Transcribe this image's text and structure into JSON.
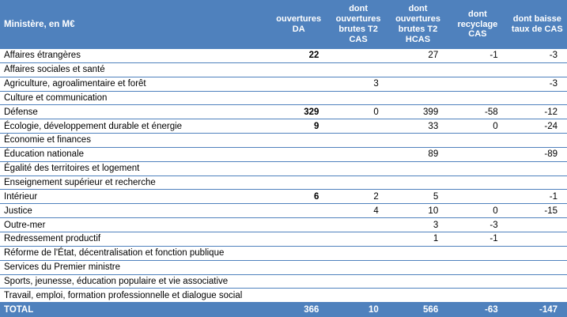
{
  "table": {
    "header": {
      "col0": "Ministère, en M€",
      "cols": [
        "ouvertures\nDA",
        "dont\nouvertures\nbrutes T2\nCAS",
        "dont\nouvertures\nbrutes T2\nHCAS",
        "dont\nrecyclage\nCAS",
        "dont baisse\ntaux de CAS"
      ]
    },
    "rows": [
      {
        "label": "Affaires étrangères",
        "values": [
          "22",
          "",
          "27",
          "-1",
          "-3"
        ]
      },
      {
        "label": "Affaires sociales et santé",
        "values": [
          "",
          "",
          "",
          "",
          ""
        ]
      },
      {
        "label": "Agriculture, agroalimentaire et forêt",
        "values": [
          "",
          "3",
          "",
          "",
          "-3"
        ]
      },
      {
        "label": "Culture et communication",
        "values": [
          "",
          "",
          "",
          "",
          ""
        ]
      },
      {
        "label": "Défense",
        "values": [
          "329",
          "0",
          "399",
          "-58",
          "-12"
        ]
      },
      {
        "label": "Écologie, développement durable et énergie",
        "values": [
          "9",
          "",
          "33",
          "0",
          "-24"
        ]
      },
      {
        "label": "Économie et finances",
        "values": [
          "",
          "",
          "",
          "",
          ""
        ]
      },
      {
        "label": "Éducation nationale",
        "values": [
          "",
          "",
          "89",
          "",
          "-89"
        ]
      },
      {
        "label": "Égalité des territoires et logement",
        "values": [
          "",
          "",
          "",
          "",
          ""
        ]
      },
      {
        "label": "Enseignement supérieur et recherche",
        "values": [
          "",
          "",
          "",
          "",
          ""
        ]
      },
      {
        "label": "Intérieur",
        "values": [
          "6",
          "2",
          "5",
          "",
          "-1"
        ]
      },
      {
        "label": "Justice",
        "values": [
          "",
          "4",
          "10",
          "0",
          "-15"
        ]
      },
      {
        "label": "Outre-mer",
        "values": [
          "",
          "",
          "3",
          "-3",
          ""
        ]
      },
      {
        "label": "Redressement productif",
        "values": [
          "",
          "",
          "1",
          "-1",
          ""
        ]
      },
      {
        "label": "Réforme de l'État, décentralisation et fonction publique",
        "values": [
          "",
          "",
          "",
          "",
          ""
        ]
      },
      {
        "label": "Services du Premier ministre",
        "values": [
          "",
          "",
          "",
          "",
          ""
        ]
      },
      {
        "label": "Sports, jeunesse, éducation populaire et vie associative",
        "values": [
          "",
          "",
          "",
          "",
          ""
        ]
      },
      {
        "label": "Travail, emploi, formation professionnelle et dialogue social",
        "values": [
          "",
          "",
          "",
          "",
          ""
        ]
      }
    ],
    "total": {
      "label": "TOTAL",
      "values": [
        "366",
        "10",
        "566",
        "-63",
        "-147"
      ]
    }
  },
  "colors": {
    "header_bg": "#4f81bd",
    "row_line": "#4f81bd",
    "total_bg": "#4f81bd"
  }
}
